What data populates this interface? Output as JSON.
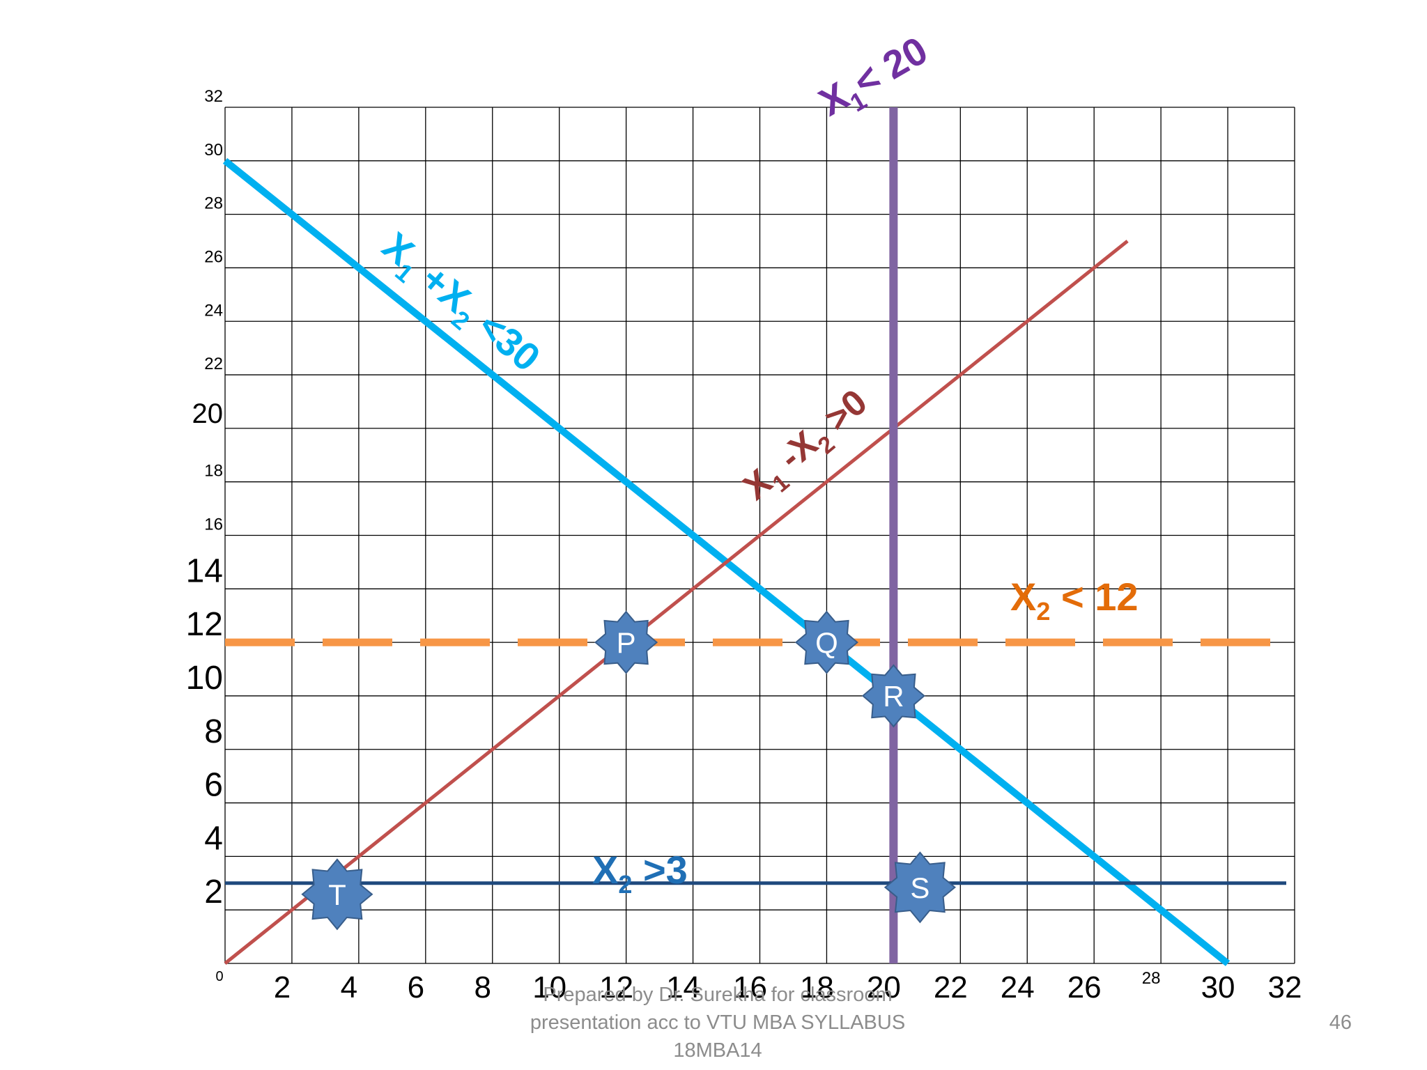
{
  "chart_data": {
    "type": "line",
    "grid": true,
    "xlim": [
      0,
      32
    ],
    "ylim": [
      0,
      32
    ],
    "origin_label": "0",
    "x_ticks": [
      "2",
      "4",
      "6",
      "8",
      "10",
      "12",
      "14",
      "16",
      "18",
      "20",
      "22",
      "24",
      "26",
      "28",
      "30",
      "32"
    ],
    "y_ticks": [
      "32",
      "30",
      "28",
      "26",
      "24",
      "22",
      "20",
      "18",
      "16",
      "14",
      "12",
      "10",
      "8",
      "6",
      "4",
      "2"
    ],
    "constraints": [
      {
        "id": "c1",
        "label": {
          "main": "X",
          "sub": "1",
          "rest": " +X",
          "sub2": "2",
          "rest2": " <30"
        },
        "equation": "x1 + x2 = 30",
        "points": [
          [
            0,
            30
          ],
          [
            30,
            0
          ]
        ],
        "color": "#00b0f0"
      },
      {
        "id": "c2",
        "label": {
          "main": "X",
          "sub": "1",
          "rest": " -X",
          "sub2": "2",
          "rest2": " >0"
        },
        "equation": "x1 - x2 = 0",
        "points": [
          [
            0,
            0
          ],
          [
            27,
            27
          ]
        ],
        "color": "#c0504d"
      },
      {
        "id": "c3",
        "label": {
          "main": "X",
          "sub": "1",
          "rest": "< 20",
          "sub2": "",
          "rest2": ""
        },
        "equation": "x1 = 20",
        "points": [
          [
            20,
            0
          ],
          [
            20,
            32
          ]
        ],
        "color": "#8064a2"
      },
      {
        "id": "c4",
        "label": {
          "main": "X",
          "sub": "2",
          "rest": " < 12",
          "sub2": "",
          "rest2": ""
        },
        "equation": "x2 = 12",
        "points": [
          [
            0,
            12
          ],
          [
            32,
            12
          ]
        ],
        "color": "#f79646"
      },
      {
        "id": "c5",
        "label": {
          "main": "X",
          "sub": "2",
          "rest": " >3",
          "sub2": "",
          "rest2": ""
        },
        "equation": "x2 = 3",
        "points": [
          [
            0,
            3
          ],
          [
            32,
            3
          ]
        ],
        "color": "#1f497d"
      }
    ],
    "corner_points": [
      {
        "label": "P",
        "x": 12,
        "y": 12
      },
      {
        "label": "Q",
        "x": 18,
        "y": 12
      },
      {
        "label": "R",
        "x": 20,
        "y": 10
      },
      {
        "label": "S",
        "x": 20,
        "y": 3
      },
      {
        "label": "T",
        "x": 3,
        "y": 3
      }
    ]
  },
  "colors": {
    "grid": "#000000",
    "point_fill": "#4f81bd",
    "point_stroke": "#385d8a",
    "label_c1": "#00b0f0",
    "label_c2": "#953735",
    "label_c3": "#7030a0",
    "label_c4": "#e36c09",
    "label_c5": "#1f6fb5"
  },
  "footer": {
    "text": "Prepared by Dr. Surekha for classroom\npresentation acc to VTU MBA SYLLABUS\n18MBA14",
    "slide_number": "46"
  }
}
